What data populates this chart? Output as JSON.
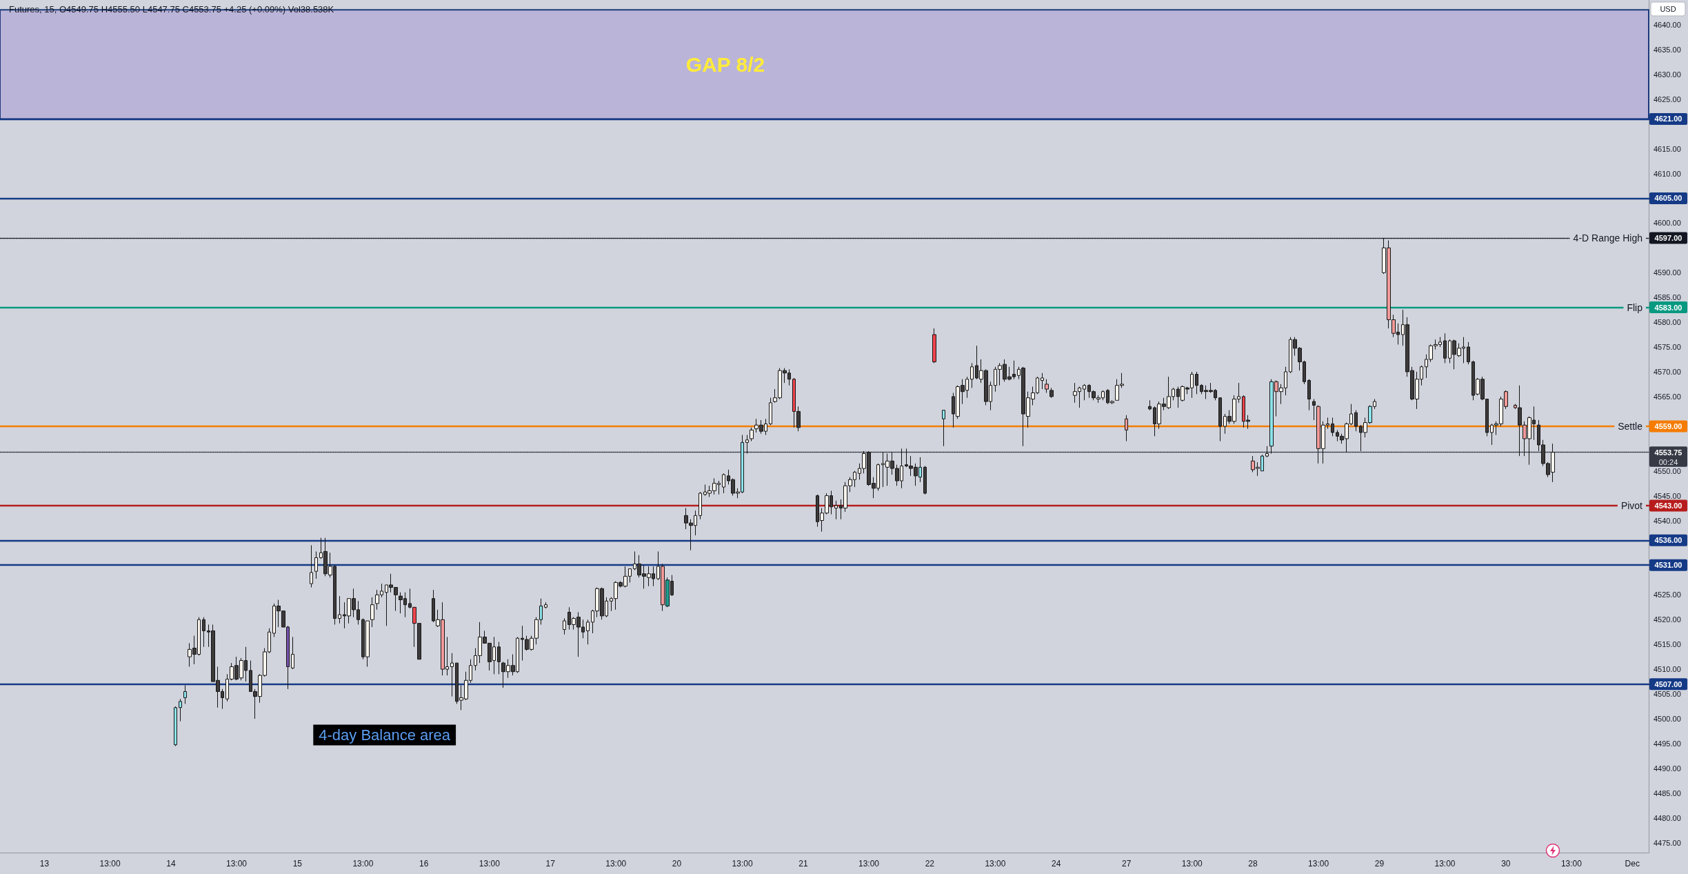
{
  "chart_data": {
    "type": "candlestick",
    "title": "Futures, 15, O4549.75 H4555.50 L4547.75 C4553.75 +4.25 (+0.09%) Vol38.538K",
    "ylabel": "USD",
    "categories": [
      null,
      null,
      null,
      null,
      null,
      null,
      null,
      null,
      null,
      "13",
      null,
      null,
      null,
      null,
      null,
      null,
      null,
      null,
      null,
      null,
      null,
      null,
      null,
      "13:00",
      null,
      null,
      null,
      null,
      null,
      null,
      null,
      null,
      null,
      null,
      null,
      null,
      "14",
      null,
      null,
      null,
      null,
      null,
      null,
      null,
      null,
      null,
      null,
      null,
      null,
      null,
      "13:00",
      null,
      null,
      null,
      null,
      null,
      null,
      null,
      null,
      null,
      null,
      null,
      null,
      "15",
      null,
      null,
      null,
      null,
      null,
      null,
      null,
      null,
      null,
      null,
      null,
      null,
      null,
      "13:00",
      null,
      null,
      null,
      null,
      null,
      null,
      null,
      null,
      null,
      null,
      null,
      null,
      "16",
      null,
      null,
      null,
      null,
      null,
      null,
      null,
      null,
      null,
      null,
      null,
      null,
      null,
      "13:00",
      null,
      null,
      null,
      null,
      null,
      null,
      null,
      null,
      null,
      null,
      null,
      null,
      "17",
      null,
      null,
      null,
      null,
      null,
      null,
      null,
      null,
      null,
      null,
      null,
      null,
      null,
      "13:00",
      null,
      null,
      null,
      null,
      null,
      null,
      null,
      null,
      null,
      null,
      null,
      null,
      "20",
      null,
      null,
      null,
      null,
      null,
      null,
      null,
      null,
      null,
      null,
      null,
      null,
      null,
      "13:00",
      null,
      null,
      null,
      null,
      null,
      null,
      null,
      null,
      null,
      null,
      null,
      null,
      "21",
      null,
      null,
      null,
      null,
      null,
      null,
      null,
      null,
      null,
      null,
      null,
      null,
      null,
      "13:00",
      null,
      null,
      null,
      null,
      null,
      null,
      null,
      null,
      null,
      null,
      null,
      null,
      "22",
      null,
      null,
      null,
      null,
      null,
      null,
      null,
      null,
      null,
      null,
      null,
      null,
      null,
      "13:00",
      null,
      null,
      null,
      null,
      null,
      null,
      null,
      null,
      null,
      null,
      null,
      null,
      "24",
      null,
      null,
      null,
      null,
      null,
      null,
      null,
      null,
      null,
      null,
      null,
      null,
      null,
      null,
      "27",
      null,
      null,
      null,
      null,
      null,
      null,
      null,
      null,
      null,
      null,
      null,
      null,
      null,
      "13:00",
      null,
      null,
      null,
      null,
      null,
      null,
      null,
      null,
      null,
      null,
      null,
      null,
      "28",
      null,
      null,
      null,
      null,
      null,
      null,
      null,
      null,
      null,
      null,
      null,
      null,
      null,
      "13:00",
      null,
      null,
      null,
      null,
      null,
      null,
      null,
      null,
      null,
      null,
      null,
      null,
      "29",
      null,
      null,
      null,
      null,
      null,
      null,
      null,
      null,
      null,
      null,
      null,
      null,
      null,
      "13:00",
      null,
      null,
      null,
      null,
      null,
      null,
      null,
      null,
      null,
      null,
      null,
      null,
      "30",
      null,
      null,
      null,
      null,
      null,
      null,
      null,
      null,
      null,
      null,
      null,
      null,
      null,
      "13:00",
      null,
      null,
      null,
      null,
      null,
      null,
      null,
      null,
      null,
      null,
      null,
      null,
      "Dec",
      null,
      null,
      null
    ],
    "ohlc": [
      null,
      null,
      null,
      null,
      null,
      null,
      null,
      null,
      null,
      null,
      null,
      null,
      null,
      null,
      null,
      null,
      null,
      null,
      null,
      null,
      null,
      null,
      null,
      null,
      null,
      null,
      null,
      null,
      null,
      null,
      null,
      null,
      null,
      null,
      null,
      null,
      null,
      [
        4494.75,
        4502.5,
        4494.5,
        4502.25
      ],
      [
        4502.25,
        4504,
        4499.5,
        4503.5
      ],
      [
        4504.25,
        4506.75,
        4503,
        4505.5
      ],
      [
        4512.5,
        4515.25,
        4510.5,
        4514
      ],
      [
        4514.25,
        4516.75,
        4511,
        4513
      ],
      [
        4513,
        4520.5,
        4512.75,
        4520
      ],
      [
        4520,
        4520.5,
        4514.5,
        4517.75
      ],
      [
        4517.75,
        4519,
        4514.5,
        4517.5
      ],
      [
        4517.75,
        4519,
        4507.5,
        4507.5
      ],
      [
        4507.75,
        4510.5,
        4502.25,
        4505.5
      ],
      [
        4505.5,
        4506,
        4502,
        4504.25
      ],
      [
        4504,
        4509,
        4503.5,
        4508
      ],
      [
        4508,
        4511.25,
        4507.75,
        4510.5
      ],
      [
        4510.75,
        4512.5,
        4507.75,
        4508
      ],
      [
        4508.25,
        4512.25,
        4507.75,
        4511.75
      ],
      [
        4511.75,
        4514.5,
        4507.5,
        4509.75
      ],
      [
        4509.75,
        4511.75,
        4505.5,
        4505.5
      ],
      [
        4505.5,
        4506,
        4500,
        4504.5
      ],
      [
        4504.5,
        4509,
        4503.25,
        4508.75
      ],
      [
        4508.75,
        4514.25,
        4508.5,
        4513.5
      ],
      [
        4513.5,
        4518.25,
        4513.25,
        4517.5
      ],
      [
        4517.25,
        4523.25,
        4516.5,
        4522.75
      ],
      [
        4522.75,
        4524,
        4518.5,
        4521.75
      ],
      [
        4521.75,
        4521.75,
        4518.5,
        4518.5
      ],
      [
        4518.5,
        4518.75,
        4506,
        4510.5
      ],
      [
        4510.25,
        4516.5,
        4510,
        4513
      ],
      null,
      null,
      null,
      [
        4527.25,
        4535,
        4526.5,
        4529.5
      ],
      [
        4529.75,
        4533.75,
        4528.25,
        4532.5
      ],
      [
        4532.5,
        4536.5,
        4532.25,
        4533.5
      ],
      [
        4533.75,
        4536.5,
        4528.75,
        4529.25
      ],
      [
        4529,
        4533.5,
        4528.5,
        4530.75
      ],
      [
        4530.75,
        4531,
        4519,
        4520.25
      ],
      [
        4520.25,
        4524.75,
        4519.25,
        4521
      ],
      [
        4521,
        4523.5,
        4518.25,
        4520.75
      ],
      [
        4520.75,
        4524.25,
        4519.25,
        4524.25
      ],
      [
        4524.25,
        4526.25,
        4520.5,
        4522
      ],
      [
        4522,
        4523.75,
        4519,
        4520
      ],
      [
        4520,
        4520.25,
        4512,
        4512.5
      ],
      [
        4512.5,
        4519.75,
        4510.5,
        4519.75
      ],
      [
        4520,
        4524.5,
        4518.5,
        4523
      ],
      [
        4523.25,
        4526,
        4522,
        4525
      ],
      [
        4525,
        4527.25,
        4524.5,
        4525.75
      ],
      [
        4525.5,
        4527,
        4518.75,
        4527
      ],
      [
        4527,
        4529.25,
        4525.5,
        4526.5
      ],
      [
        4526.5,
        4526.5,
        4521.75,
        4525
      ],
      [
        4524.75,
        4525.5,
        4521.25,
        4524
      ],
      [
        4524.25,
        4525.5,
        4520.5,
        4523
      ],
      [
        4523.25,
        4526.25,
        4522.25,
        4522.5
      ],
      [
        4522.5,
        4522.5,
        4514.5,
        4519.25
      ],
      [
        4519.25,
        4519.25,
        4512,
        4512
      ],
      null,
      null,
      [
        4524.25,
        4526,
        4519.5,
        4519.75
      ],
      [
        4518.75,
        4522,
        4518.5,
        4520
      ],
      [
        4520,
        4523.5,
        4508.75,
        4510
      ],
      [
        4510,
        4516.5,
        4508.75,
        4510.5
      ],
      [
        4510.5,
        4513.25,
        4504.5,
        4511.25
      ],
      [
        4511.25,
        4511.25,
        4503,
        4503.5
      ],
      [
        4503.75,
        4506.75,
        4501.75,
        4504.25
      ],
      [
        4504,
        4509.5,
        4503.75,
        4507.75
      ],
      [
        4507.75,
        4512,
        4507.25,
        4510.75
      ],
      [
        4510.75,
        4514.25,
        4509.75,
        4512.75
      ],
      [
        4512.75,
        4519.5,
        4511.25,
        4516.5
      ],
      [
        4516.5,
        4517.75,
        4515.25,
        4515.25
      ],
      [
        4515.25,
        4515.25,
        4509.75,
        4511.5
      ],
      [
        4511.75,
        4516.5,
        4509,
        4514.5
      ],
      [
        4514.5,
        4515.5,
        4509,
        4511.5
      ],
      [
        4511.25,
        4511.5,
        4506.25,
        4509.5
      ],
      [
        4509.5,
        4512,
        4508.25,
        4510.75
      ],
      [
        4510.75,
        4513,
        4508.75,
        4509.5
      ],
      [
        4509.5,
        4516.5,
        4509.25,
        4516.25
      ],
      [
        4516.25,
        4518.75,
        4511.75,
        4516
      ],
      [
        4516,
        4516.75,
        4513.75,
        4514
      ],
      [
        4514,
        4516.75,
        4513.75,
        4516.25
      ],
      [
        4516.25,
        4520.5,
        4515,
        4520
      ],
      [
        4520,
        4524.25,
        4519,
        4522.75
      ],
      [
        4522.5,
        4523.5,
        4522.25,
        4523
      ],
      null,
      null,
      null,
      [
        4518,
        4520.25,
        4517,
        4519.75
      ],
      [
        4521.5,
        4522.5,
        4518,
        4519
      ],
      [
        4519,
        4520.5,
        4518,
        4520.25
      ],
      [
        4520.5,
        4521.5,
        4512.5,
        4518.5
      ],
      [
        4518.5,
        4520,
        4516.25,
        4517.5
      ],
      [
        4517.75,
        4520,
        4515,
        4519.5
      ],
      [
        4519.5,
        4522,
        4517.25,
        4521.75
      ],
      [
        4521.75,
        4526.5,
        4520.5,
        4526.25
      ],
      [
        4526.25,
        4526.5,
        4520,
        4520.75
      ],
      [
        4520.75,
        4524.5,
        4520.5,
        4523.75
      ],
      [
        4523.75,
        4524.5,
        4521.75,
        4524.25
      ],
      [
        4524.25,
        4527.75,
        4522,
        4527.5
      ],
      [
        4527.5,
        4527.75,
        4526.5,
        4526.75
      ],
      [
        4526.75,
        4530.75,
        4526.5,
        4528.75
      ],
      [
        4528.75,
        4530.25,
        4527.5,
        4530.25
      ],
      [
        4530.25,
        4533.75,
        4530,
        4531.25
      ],
      [
        4531.25,
        4533,
        4528.5,
        4529
      ],
      [
        4529.25,
        4531,
        4526.25,
        4528.75
      ],
      [
        4528.5,
        4530.75,
        4526.75,
        4529.25
      ],
      [
        4529.25,
        4530.75,
        4526.75,
        4528.25
      ],
      [
        4528.25,
        4533.75,
        4528,
        4530.75
      ],
      [
        4530.75,
        4531.25,
        4521.75,
        4523
      ],
      [
        4522.75,
        4528.5,
        4522.5,
        4528
      ],
      [
        4527.75,
        4529,
        4524.75,
        4525
      ],
      null,
      null,
      [
        4541,
        4542.5,
        4538.25,
        4539.5
      ],
      [
        4539.5,
        4540.25,
        4534,
        4539
      ],
      [
        4539,
        4542,
        4537,
        4541
      ],
      [
        4541,
        4545.75,
        4540.25,
        4545.5
      ],
      [
        4545.25,
        4547.25,
        4545,
        4545.75
      ],
      [
        4545.5,
        4547,
        4544.75,
        4546
      ],
      [
        4546,
        4548.5,
        4545.25,
        4547.5
      ],
      [
        4547.25,
        4548,
        4545.25,
        4547.5
      ],
      [
        4546.75,
        4549.5,
        4545.5,
        4549.25
      ],
      [
        4549,
        4550.25,
        4547.25,
        4548
      ],
      [
        4548.25,
        4548.5,
        4545,
        4545.5
      ],
      [
        4545.5,
        4546.5,
        4544.5,
        4545.75
      ],
      [
        4545.75,
        4557.25,
        4545.5,
        4555.75
      ],
      [
        4555.75,
        4557.25,
        4553.5,
        4556.25
      ],
      [
        4556.5,
        4558.75,
        4556,
        4558.25
      ],
      [
        4558.5,
        4560.5,
        4557.75,
        4559.25
      ],
      [
        4559.25,
        4560.25,
        4557.5,
        4558
      ],
      [
        4558,
        4560.5,
        4557.25,
        4559.5
      ],
      [
        4559.5,
        4564.75,
        4559.25,
        4563.75
      ],
      [
        4564,
        4566.5,
        4563.75,
        4564.75
      ],
      [
        4564.75,
        4570.75,
        4564.5,
        4570.25
      ],
      [
        4570.25,
        4570.75,
        4567.75,
        4569.75
      ],
      [
        4569.75,
        4570.5,
        4567.25,
        4568.5
      ],
      [
        4568.5,
        4568.75,
        4558.75,
        4562
      ],
      [
        4562,
        4563,
        4558,
        4558.75
      ],
      null,
      null,
      null,
      [
        4545,
        4545.25,
        4538.75,
        4539.75
      ],
      [
        4540,
        4542.5,
        4537.75,
        4541.5
      ],
      [
        4541.5,
        4545.5,
        4541.25,
        4545
      ],
      [
        4545,
        4546,
        4541.25,
        4542.75
      ],
      [
        4542.5,
        4544,
        4540.25,
        4543
      ],
      [
        4543,
        4544.25,
        4540.25,
        4542.5
      ],
      [
        4542.5,
        4547.75,
        4541.75,
        4547
      ],
      [
        4547,
        4548.75,
        4545.75,
        4548.25
      ],
      [
        4548.25,
        4550,
        4546.75,
        4549.75
      ],
      [
        4549.5,
        4551.5,
        4548.25,
        4550.5
      ],
      [
        4550.5,
        4554,
        4549.5,
        4553.5
      ],
      [
        4553.75,
        4554,
        4547,
        4547.25
      ],
      [
        4547.5,
        4548.75,
        4544.5,
        4546.5
      ],
      [
        4546.5,
        4551.5,
        4546,
        4551.25
      ],
      [
        4551.25,
        4553.75,
        4546.75,
        4551.5
      ],
      [
        4550.75,
        4553.5,
        4547,
        4552
      ],
      [
        4552,
        4553.75,
        4549.25,
        4550.5
      ],
      [
        4550.5,
        4551.25,
        4547,
        4548
      ],
      [
        4548,
        4554.5,
        4546.5,
        4551
      ],
      [
        4551.25,
        4554.5,
        4550.75,
        4551
      ],
      [
        4551,
        4553,
        4549,
        4550.5
      ],
      [
        4550.75,
        4551.5,
        4547,
        4549
      ],
      [
        4548.75,
        4552.75,
        4547.75,
        4550.75
      ],
      [
        4550.75,
        4551,
        4545.25,
        4545.5
      ],
      null,
      [
        4577.5,
        4578.75,
        4571.75,
        4572
      ],
      null,
      [
        4560.5,
        4562.25,
        4555,
        4562.25
      ],
      null,
      [
        4565,
        4565.75,
        4558.75,
        4561.5
      ],
      [
        4561,
        4567.25,
        4560.5,
        4567
      ],
      [
        4567.25,
        4568.5,
        4563.5,
        4566
      ],
      [
        4566.25,
        4569,
        4564.75,
        4568.5
      ],
      [
        4568.5,
        4571.75,
        4566.75,
        4571
      ],
      [
        4571.25,
        4575.25,
        4568.5,
        4568.75
      ],
      [
        4568.5,
        4572.5,
        4567.75,
        4570.25
      ],
      [
        4570.25,
        4570.5,
        4563.25,
        4564
      ],
      [
        4564,
        4568,
        4562.25,
        4567.25
      ],
      [
        4567.25,
        4571,
        4566,
        4570.5
      ],
      [
        4570.5,
        4571.75,
        4567.25,
        4571.25
      ],
      [
        4571.5,
        4572.5,
        4568,
        4568.5
      ],
      [
        4569,
        4571,
        4568.25,
        4568.5
      ],
      [
        4569.5,
        4572.25,
        4568.5,
        4569
      ],
      [
        4569.25,
        4571,
        4568.5,
        4570.5
      ],
      [
        4570.75,
        4571,
        4555,
        4561.5
      ],
      [
        4561,
        4566,
        4558.75,
        4564.75
      ],
      [
        4564.5,
        4567,
        4563.25,
        4565.75
      ],
      [
        4565.75,
        4569,
        4565.5,
        4568.75
      ],
      [
        4568.25,
        4569.75,
        4566.5,
        4568.75
      ],
      [
        4567.5,
        4568.5,
        4565.75,
        4566.5
      ],
      [
        4566.25,
        4566.75,
        4564.75,
        4565
      ],
      null,
      null,
      null,
      null,
      [
        4565.25,
        4567.75,
        4563.75,
        4566
      ],
      [
        4566,
        4567,
        4562.75,
        4566.75
      ],
      [
        4566.5,
        4567.5,
        4564.25,
        4567.25
      ],
      [
        4567.25,
        4567.5,
        4564.75,
        4566
      ],
      [
        4566,
        4566.25,
        4564.25,
        4564.75
      ],
      [
        4564.5,
        4565.25,
        4563.75,
        4564.75
      ],
      [
        4564.75,
        4566.25,
        4564.25,
        4566
      ],
      [
        4566.25,
        4566.5,
        4563.5,
        4563.75
      ],
      [
        4563.75,
        4564.25,
        4563.5,
        4564
      ],
      [
        4564.25,
        4568.5,
        4564.25,
        4567.25
      ],
      [
        4567.25,
        4569.75,
        4566.75,
        4567.5
      ],
      [
        4560.5,
        4561.25,
        4556,
        4558.25
      ],
      null,
      null,
      null,
      null,
      [
        4563,
        4564.25,
        4562.25,
        4562.5
      ],
      [
        4562.75,
        4563,
        4557,
        4559.5
      ],
      [
        4559.5,
        4564,
        4558.5,
        4563.5
      ],
      [
        4563.5,
        4564.75,
        4562.25,
        4563
      ],
      [
        4562.75,
        4569,
        4562.5,
        4565
      ],
      [
        4565,
        4566.75,
        4564.25,
        4566.5
      ],
      [
        4566.5,
        4567,
        4562.75,
        4565
      ],
      [
        4564.25,
        4567.25,
        4564,
        4567
      ],
      [
        4566.75,
        4567,
        4565.5,
        4566.5
      ],
      [
        4566.75,
        4570,
        4564.75,
        4569.5
      ],
      [
        4569.5,
        4570,
        4565.5,
        4567.25
      ],
      [
        4567.25,
        4567.5,
        4565.5,
        4566
      ],
      [
        4566.25,
        4567.25,
        4564.5,
        4566
      ],
      [
        4566.25,
        4567.75,
        4565.75,
        4566
      ],
      [
        4566.25,
        4566.5,
        4564.25,
        4564.75
      ],
      [
        4564.75,
        4564.75,
        4556,
        4559
      ],
      [
        4559,
        4561.5,
        4557.5,
        4561
      ],
      [
        4561,
        4562.25,
        4559.5,
        4560
      ],
      [
        4560,
        4565.25,
        4559.5,
        4564.5
      ],
      [
        4564.5,
        4567.75,
        4563.75,
        4565
      ],
      [
        4565,
        4565.25,
        4558.75,
        4560
      ],
      [
        4560.25,
        4561.25,
        4558.5,
        4560
      ],
      [
        4552,
        4553,
        4549.75,
        4550.25
      ],
      [
        4550.5,
        4551.75,
        4549,
        4550.75
      ],
      [
        4550,
        4553.25,
        4550,
        4553
      ],
      [
        4553,
        4555,
        4552.75,
        4553.5
      ],
      [
        4555,
        4568.5,
        4553.5,
        4568
      ],
      [
        4568,
        4568.25,
        4561,
        4566
      ],
      [
        4566,
        4567.5,
        4563.5,
        4566.75
      ],
      [
        4566.75,
        4571,
        4565.25,
        4570
      ],
      [
        4570,
        4577,
        4569.75,
        4576.5
      ],
      [
        4576.5,
        4577,
        4573.25,
        4574.75
      ],
      [
        4574.75,
        4575,
        4570.25,
        4572
      ],
      [
        4572,
        4572.25,
        4567.5,
        4568
      ],
      [
        4568.25,
        4568.5,
        4562.25,
        4564.5
      ],
      [
        4564,
        4564.5,
        4560.25,
        4563.25
      ],
      [
        4563,
        4563.25,
        4551.5,
        4554.5
      ],
      [
        4554.5,
        4560,
        4551.5,
        4559.25
      ],
      [
        4559.25,
        4560.75,
        4558.5,
        4559.5
      ],
      [
        4559.5,
        4560.75,
        4557,
        4557.75
      ],
      [
        4557.75,
        4558.25,
        4556,
        4557
      ],
      [
        4557,
        4557.5,
        4555.5,
        4556.25
      ],
      [
        4556.5,
        4559.75,
        4553.75,
        4559.5
      ],
      [
        4559.5,
        4563.5,
        4559.25,
        4561.5
      ],
      [
        4561.75,
        4562.25,
        4558,
        4559
      ],
      [
        4559,
        4559.25,
        4554,
        4557.75
      ],
      [
        4557.75,
        4560.75,
        4556.75,
        4559.75
      ],
      [
        4559.75,
        4563.25,
        4559.5,
        4563
      ],
      [
        4563,
        4564.5,
        4562.5,
        4564
      ],
      null,
      [
        4590,
        4597,
        4589.75,
        4595
      ],
      [
        4595,
        4596.5,
        4578.75,
        4580.5
      ],
      [
        4580.5,
        4581.5,
        4577,
        4577.75
      ],
      [
        4578,
        4579.75,
        4575.5,
        4577.5
      ],
      [
        4577.5,
        4582.5,
        4575.25,
        4579.5
      ],
      [
        4579.5,
        4581,
        4569,
        4570
      ],
      [
        4570.25,
        4571,
        4564.25,
        4564.5
      ],
      [
        4564.5,
        4570,
        4562.5,
        4568.5
      ],
      [
        4568.5,
        4571.25,
        4567.25,
        4571
      ],
      [
        4571,
        4573.5,
        4568.75,
        4572.5
      ],
      [
        4572.5,
        4575.5,
        4572,
        4575.25
      ],
      [
        4575.25,
        4576.5,
        4574.5,
        4575.5
      ],
      [
        4575.5,
        4577,
        4575,
        4576
      ],
      [
        4576.25,
        4577.75,
        4571.75,
        4572.75
      ],
      [
        4572.75,
        4576.5,
        4571.75,
        4576.25
      ],
      [
        4576.25,
        4576.5,
        4570.5,
        4573.5
      ],
      [
        4573.25,
        4575.75,
        4573,
        4574.75
      ],
      [
        4574.75,
        4577,
        4571.75,
        4575
      ],
      [
        4575,
        4576,
        4571.5,
        4572
      ],
      [
        4572,
        4572.25,
        4564.25,
        4565.25
      ],
      [
        4565.5,
        4568.75,
        4565.25,
        4568.5
      ],
      [
        4568.5,
        4569,
        4564.25,
        4564.5
      ],
      [
        4564.5,
        4564.5,
        4557,
        4557.75
      ],
      [
        4557.75,
        4559.5,
        4555.25,
        4559.25
      ],
      [
        4559.25,
        4560,
        4557.25,
        4559.5
      ],
      [
        4559.5,
        4565,
        4559,
        4564.5
      ],
      [
        4566,
        4566.25,
        4562.5,
        4563
      ],
      null,
      [
        4563.25,
        4563.5,
        4562.5,
        4562.75
      ],
      [
        4562.75,
        4567.25,
        4553,
        4559.25
      ],
      [
        4559.25,
        4560,
        4553,
        4556.5
      ],
      [
        4556.5,
        4561,
        4551.25,
        4560.75
      ],
      [
        4560.25,
        4563,
        4556.25,
        4559.5
      ],
      [
        4559.25,
        4560.25,
        4554,
        4555.25
      ],
      [
        4555.25,
        4556.25,
        4551,
        4551.5
      ],
      [
        4551.5,
        4551.75,
        4548.75,
        4549.25
      ],
      [
        4549.75,
        4555.5,
        4547.75,
        4553.75
      ],
      null,
      null,
      null,
      null,
      null,
      null,
      null,
      null,
      null,
      null,
      null,
      null,
      null,
      null,
      null,
      null,
      null,
      null,
      null,
      null
    ],
    "colors": [
      null,
      null,
      null,
      null,
      null,
      null,
      null,
      null,
      null,
      null,
      null,
      null,
      null,
      null,
      null,
      null,
      null,
      null,
      null,
      null,
      null,
      null,
      null,
      null,
      null,
      null,
      null,
      null,
      null,
      null,
      null,
      null,
      null,
      null,
      null,
      null,
      null,
      "#8ce3ec",
      "#8ce3ec",
      "#8ce3ec",
      "#fdf6ef",
      "#3d3a3b",
      "#fdf6ef",
      "#3d3a3b",
      "#3d3a3b",
      "#3d3a3b",
      "#3d3a3b",
      "#3d3a3b",
      "#fdf6ef",
      "#fdf6ef",
      "#3d3a3b",
      "#fdf6ef",
      "#3d3a3b",
      "#3d3a3b",
      "#3d3a3b",
      "#fdf6ef",
      "#fdf6ef",
      "#fdf6ef",
      "#fdf6ef",
      "#3d3a3b",
      "#3d3a3b",
      "#7650ad",
      "#fdf6ef",
      null,
      null,
      null,
      "#fdf6ef",
      "#fdf6ef",
      "#fdf6ef",
      "#3d3a3b",
      "#fdf6ef",
      "#3d3a3b",
      "#fdf6ef",
      "#3d3a3b",
      "#fdf6ef",
      "#3d3a3b",
      "#3d3a3b",
      "#3d3a3b",
      "#fdf6ef",
      "#fdf6ef",
      "#fdf6ef",
      "#fdf6ef",
      "#fdf6ef",
      "#3d3a3b",
      "#3d3a3b",
      "#3d3a3b",
      "#3d3a3b",
      "#3d3a3b",
      "#f0444d",
      "#3d3a3b",
      null,
      null,
      "#3d3a3b",
      "#fdf6ef",
      "#f29a9a",
      "#fdf6ef",
      "#fdf6ef",
      "#3d3a3b",
      "#fdf6ef",
      "#fdf6ef",
      "#fdf6ef",
      "#fdf6ef",
      "#fdf6ef",
      "#3d3a3b",
      "#3d3a3b",
      "#fdf6ef",
      "#3d3a3b",
      "#3d3a3b",
      "#fdf6ef",
      "#3d3a3b",
      "#fdf6ef",
      "#3d3a3b",
      "#3d3a3b",
      "#fdf6ef",
      "#fdf6ef",
      "#8ce3ec",
      "#fdf6ef",
      null,
      null,
      null,
      "#fdf6ef",
      "#3d3a3b",
      "#fdf6ef",
      "#3d3a3b",
      "#3d3a3b",
      "#fdf6ef",
      "#fdf6ef",
      "#fdf6ef",
      "#3d3a3b",
      "#fdf6ef",
      "#fdf6ef",
      "#fdf6ef",
      "#3d3a3b",
      "#fdf6ef",
      "#fdf6ef",
      "#fdf6ef",
      "#3d3a3b",
      "#3d3a3b",
      "#fdf6ef",
      "#3d3a3b",
      "#fdf6ef",
      "#f29a9a",
      "#1f9d8f",
      "#3d3a3b",
      null,
      null,
      "#3d3a3b",
      "#3d3a3b",
      "#fdf6ef",
      "#fdf6ef",
      "#fdf6ef",
      "#fdf6ef",
      "#fdf6ef",
      "#fdf6ef",
      "#fdf6ef",
      "#3d3a3b",
      "#3d3a3b",
      "#fdf6ef",
      "#8ce3ec",
      "#fdf6ef",
      "#fdf6ef",
      "#fdf6ef",
      "#3d3a3b",
      "#fdf6ef",
      "#fdf6ef",
      "#fdf6ef",
      "#fdf6ef",
      "#3d3a3b",
      "#3d3a3b",
      "#f0444d",
      "#3d3a3b",
      null,
      null,
      null,
      "#3d3a3b",
      "#fdf6ef",
      "#fdf6ef",
      "#3d3a3b",
      "#fdf6ef",
      "#3d3a3b",
      "#fdf6ef",
      "#fdf6ef",
      "#fdf6ef",
      "#fdf6ef",
      "#fdf6ef",
      "#3d3a3b",
      "#3d3a3b",
      "#fdf6ef",
      "#fdf6ef",
      "#fdf6ef",
      "#3d3a3b",
      "#3d3a3b",
      "#fdf6ef",
      "#3d3a3b",
      "#3d3a3b",
      "#3d3a3b",
      "#8ce3ec",
      "#3d3a3b",
      null,
      "#f0444d",
      null,
      "#8ce3ec",
      null,
      "#3d3a3b",
      "#fdf6ef",
      "#3d3a3b",
      "#fdf6ef",
      "#fdf6ef",
      "#3d3a3b",
      "#fdf6ef",
      "#3d3a3b",
      "#fdf6ef",
      "#fdf6ef",
      "#fdf6ef",
      "#3d3a3b",
      "#3d3a3b",
      "#3d3a3b",
      "#fdf6ef",
      "#3d3a3b",
      "#fdf6ef",
      "#fdf6ef",
      "#fdf6ef",
      "#fdf6ef",
      "#f29a9a",
      "#3d3a3b",
      null,
      null,
      null,
      null,
      "#fdf6ef",
      "#fdf6ef",
      "#fdf6ef",
      "#3d3a3b",
      "#3d3a3b",
      "#fdf6ef",
      "#fdf6ef",
      "#3d3a3b",
      "#fdf6ef",
      "#fdf6ef",
      "#fdf6ef",
      "#f29a9a",
      null,
      null,
      null,
      null,
      "#3d3a3b",
      "#3d3a3b",
      "#fdf6ef",
      "#3d3a3b",
      "#fdf6ef",
      "#fdf6ef",
      "#3d3a3b",
      "#fdf6ef",
      "#3d3a3b",
      "#fdf6ef",
      "#3d3a3b",
      "#3d3a3b",
      "#3d3a3b",
      "#3d3a3b",
      "#3d3a3b",
      "#3d3a3b",
      "#fdf6ef",
      "#3d3a3b",
      "#fdf6ef",
      "#fdf6ef",
      "#f0444d",
      "#3d3a3b",
      "#f29a9a",
      "#fdf6ef",
      "#8ce3ec",
      "#fdf6ef",
      "#8ce3ec",
      "#f29a9a",
      "#fdf6ef",
      "#fdf6ef",
      "#fdf6ef",
      "#3d3a3b",
      "#3d3a3b",
      "#3d3a3b",
      "#3d3a3b",
      "#3d3a3b",
      "#f29a9a",
      "#fdf6ef",
      "#fdf6ef",
      "#3d3a3b",
      "#3d3a3b",
      "#3d3a3b",
      "#fdf6ef",
      "#fdf6ef",
      "#3d3a3b",
      "#3d3a3b",
      "#fdf6ef",
      "#8ce3ec",
      "#fdf6ef",
      null,
      "#fdf6ef",
      "#f29a9a",
      "#f29a9a",
      "#3d3a3b",
      "#fdf6ef",
      "#3d3a3b",
      "#3d3a3b",
      "#fdf6ef",
      "#fdf6ef",
      "#fdf6ef",
      "#fdf6ef",
      "#fdf6ef",
      "#fdf6ef",
      "#3d3a3b",
      "#fdf6ef",
      "#3d3a3b",
      "#fdf6ef",
      "#fdf6ef",
      "#3d3a3b",
      "#3d3a3b",
      "#fdf6ef",
      "#3d3a3b",
      "#3d3a3b",
      "#fdf6ef",
      "#8ce3ec",
      "#fdf6ef",
      "#f29a9a",
      null,
      "#f29a9a",
      "#3d3a3b",
      "#f29a9a",
      "#fdf6ef",
      "#3d3a3b",
      "#3d3a3b",
      "#3d3a3b",
      "#3d3a3b",
      "#fdf6ef",
      null,
      null,
      null,
      null,
      null,
      null,
      null,
      null,
      null,
      null,
      null,
      null,
      null,
      null,
      null,
      null,
      null,
      null,
      null,
      null
    ],
    "ylim": [
      4473,
      4645
    ],
    "yticks": [
      {
        "value": 4475,
        "label": "4475.00"
      },
      {
        "value": 4480,
        "label": "4480.00"
      },
      {
        "value": 4485,
        "label": "4485.00"
      },
      {
        "value": 4490,
        "label": "4490.00"
      },
      {
        "value": 4495,
        "label": "4495.00"
      },
      {
        "value": 4500,
        "label": "4500.00"
      },
      {
        "value": 4505,
        "label": "4505.00"
      },
      {
        "value": 4510,
        "label": "4510.00"
      },
      {
        "value": 4515,
        "label": "4515.00"
      },
      {
        "value": 4520,
        "label": "4520.00"
      },
      {
        "value": 4525,
        "label": "4525.00"
      },
      {
        "value": 4540,
        "label": "4540.00"
      },
      {
        "value": 4545,
        "label": "4545.00"
      },
      {
        "value": 4550,
        "label": "4550.00"
      },
      {
        "value": 4565,
        "label": "4565.00"
      },
      {
        "value": 4570,
        "label": "4570.00"
      },
      {
        "value": 4575,
        "label": "4575.00"
      },
      {
        "value": 4580,
        "label": "4580.00"
      },
      {
        "value": 4585,
        "label": "4585.00"
      },
      {
        "value": 4590,
        "label": "4590.00"
      },
      {
        "value": 4600,
        "label": "4600.00"
      },
      {
        "value": 4610,
        "label": "4610.00"
      },
      {
        "value": 4615,
        "label": "4615.00"
      },
      {
        "value": 4625,
        "label": "4625.00"
      },
      {
        "value": 4630,
        "label": "4630.00"
      },
      {
        "value": 4635,
        "label": "4635.00"
      },
      {
        "value": 4640,
        "label": "4640.00"
      }
    ],
    "ref_lines": [
      {
        "axis": "y",
        "value": 4621,
        "color": "#153a86"
      },
      {
        "axis": "y",
        "value": 4605,
        "color": "#153a86"
      },
      {
        "axis": "y",
        "value": 4597,
        "label": "4-D Range High",
        "color": "#131722",
        "line_style": "dotted"
      },
      {
        "axis": "y",
        "value": 4583,
        "label": "Flip",
        "color": "#089981"
      },
      {
        "axis": "y",
        "value": 4559,
        "label": "Settle",
        "color": "#f57c00"
      },
      {
        "axis": "y",
        "value": 4553.75,
        "color": "#363a45",
        "line_style": "dotted"
      },
      {
        "axis": "y",
        "value": 4543,
        "label": "Pivot",
        "color": "#b71c1c"
      },
      {
        "axis": "y",
        "value": 4536,
        "color": "#153a86"
      },
      {
        "axis": "y",
        "value": 4531,
        "color": "#153a86"
      },
      {
        "axis": "y",
        "value": 4507,
        "color": "#153a86"
      }
    ],
    "bands": [
      {
        "axis": "y",
        "from": 4621,
        "to": 4643,
        "label": "GAP 8/2",
        "color": "#bab4d8"
      }
    ],
    "annotations": [
      "4-day Balance area",
      "4621.00",
      "4605.00",
      "4597.00",
      "4583.00",
      "4559.00",
      "4553.75",
      "00:24",
      "4543.00",
      "4536.00",
      "4531.00",
      "4507.00"
    ]
  }
}
